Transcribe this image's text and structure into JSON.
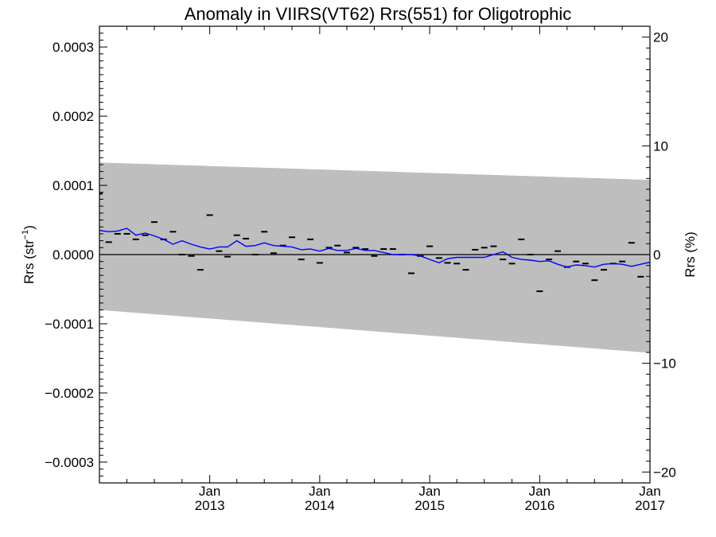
{
  "chart_data": {
    "type": "line",
    "title": "Anomaly in VIIRS(VT62) Rrs(551) for Oligotrophic",
    "ylabel_left": "Rrs (str",
    "ylabel_left_sup": "−1",
    "ylabel_left_close": ")",
    "ylabel_right": "Rrs (%)",
    "xlim": [
      "2012-01-01",
      "2017-01-01"
    ],
    "ylim": [
      -0.00033,
      0.00033
    ],
    "ylim_right": [
      -21.0,
      21.0
    ],
    "y_ticks": [
      {
        "value": 0.0003,
        "label": "0.0003"
      },
      {
        "value": 0.0002,
        "label": "0.0002"
      },
      {
        "value": 0.0001,
        "label": "0.0001"
      },
      {
        "value": 0.0,
        "label": "0.0000"
      },
      {
        "value": -0.0001,
        "label": "−0.0001"
      },
      {
        "value": -0.0002,
        "label": "−0.0002"
      },
      {
        "value": -0.0003,
        "label": "−0.0003"
      }
    ],
    "y_ticks_right": [
      {
        "value": 20,
        "label": "20"
      },
      {
        "value": 10,
        "label": "10"
      },
      {
        "value": 0,
        "label": "0"
      },
      {
        "value": -10,
        "label": "−10"
      },
      {
        "value": -20,
        "label": "−20"
      }
    ],
    "x_ticks": [
      {
        "date": "2013-01-01",
        "month": "Jan",
        "year": "2013"
      },
      {
        "date": "2014-01-01",
        "month": "Jan",
        "year": "2014"
      },
      {
        "date": "2015-01-01",
        "month": "Jan",
        "year": "2015"
      },
      {
        "date": "2016-01-01",
        "month": "Jan",
        "year": "2016"
      },
      {
        "date": "2017-01-01",
        "month": "Jan",
        "year": "2017"
      }
    ],
    "grid": false,
    "zero_line": true,
    "band": {
      "color": "#bebebe",
      "upper": [
        [
          "2012-01-01",
          0.000133
        ],
        [
          "2017-01-01",
          0.000108
        ]
      ],
      "lower": [
        [
          "2012-01-01",
          -8e-05
        ],
        [
          "2017-01-01",
          -0.000142
        ]
      ]
    },
    "series": [
      {
        "style": "dash",
        "color": "#000000",
        "points": [
          [
            "2012-01-01",
            8.8e-05
          ],
          [
            "2012-02-01",
            1.8e-05
          ],
          [
            "2012-03-01",
            3e-05
          ],
          [
            "2012-04-01",
            3e-05
          ],
          [
            "2012-05-01",
            2.2e-05
          ],
          [
            "2012-06-01",
            2.8e-05
          ],
          [
            "2012-07-01",
            4.7e-05
          ],
          [
            "2012-08-01",
            2.2e-05
          ],
          [
            "2012-09-01",
            3.3e-05
          ],
          [
            "2012-10-01",
            0.0
          ],
          [
            "2012-11-01",
            -2e-06
          ],
          [
            "2012-12-01",
            -2.2e-05
          ],
          [
            "2013-01-01",
            5.7e-05
          ],
          [
            "2013-02-01",
            5e-06
          ],
          [
            "2013-03-01",
            -3e-06
          ],
          [
            "2013-04-01",
            2.8e-05
          ],
          [
            "2013-05-01",
            2.3e-05
          ],
          [
            "2013-06-01",
            0.0
          ],
          [
            "2013-07-01",
            3.3e-05
          ],
          [
            "2013-08-01",
            2e-06
          ],
          [
            "2013-09-01",
            1.3e-05
          ],
          [
            "2013-10-01",
            2.5e-05
          ],
          [
            "2013-11-01",
            -7e-06
          ],
          [
            "2013-12-01",
            2.2e-05
          ],
          [
            "2014-01-01",
            -1.2e-05
          ],
          [
            "2014-02-01",
            1e-05
          ],
          [
            "2014-03-01",
            1.3e-05
          ],
          [
            "2014-04-01",
            3e-06
          ],
          [
            "2014-05-01",
            1e-05
          ],
          [
            "2014-06-01",
            8e-06
          ],
          [
            "2014-07-01",
            -2e-06
          ],
          [
            "2014-08-01",
            8e-06
          ],
          [
            "2014-09-01",
            8e-06
          ],
          [
            "2014-10-01",
            0.0
          ],
          [
            "2014-11-01",
            -2.7e-05
          ],
          [
            "2014-12-01",
            -2e-06
          ],
          [
            "2015-01-01",
            1.2e-05
          ],
          [
            "2015-02-01",
            -5e-06
          ],
          [
            "2015-03-01",
            -1.2e-05
          ],
          [
            "2015-04-01",
            -1.3e-05
          ],
          [
            "2015-05-01",
            -2.2e-05
          ],
          [
            "2015-06-01",
            7e-06
          ],
          [
            "2015-07-01",
            1e-05
          ],
          [
            "2015-08-01",
            1.2e-05
          ],
          [
            "2015-09-01",
            -7e-06
          ],
          [
            "2015-10-01",
            -1.3e-05
          ],
          [
            "2015-11-01",
            2.2e-05
          ],
          [
            "2015-12-01",
            0.0
          ],
          [
            "2016-01-01",
            -5.3e-05
          ],
          [
            "2016-02-01",
            -7e-06
          ],
          [
            "2016-03-01",
            5e-06
          ],
          [
            "2016-04-01",
            -1.8e-05
          ],
          [
            "2016-05-01",
            -1e-05
          ],
          [
            "2016-06-01",
            -1.3e-05
          ],
          [
            "2016-07-01",
            -3.7e-05
          ],
          [
            "2016-08-01",
            -2.2e-05
          ],
          [
            "2016-09-01",
            -1.3e-05
          ],
          [
            "2016-10-01",
            -1e-05
          ],
          [
            "2016-11-01",
            1.7e-05
          ],
          [
            "2016-12-01",
            -3.2e-05
          ]
        ]
      },
      {
        "style": "line",
        "color": "#0000ff",
        "points": [
          [
            "2012-01-01",
            3.5e-05
          ],
          [
            "2012-02-01",
            3.3e-05
          ],
          [
            "2012-03-01",
            3.4e-05
          ],
          [
            "2012-04-01",
            3.8e-05
          ],
          [
            "2012-05-01",
            2.8e-05
          ],
          [
            "2012-06-01",
            3.1e-05
          ],
          [
            "2012-07-01",
            2.7e-05
          ],
          [
            "2012-08-01",
            2.2e-05
          ],
          [
            "2012-09-01",
            1.5e-05
          ],
          [
            "2012-10-01",
            2e-05
          ],
          [
            "2012-11-01",
            1.5e-05
          ],
          [
            "2012-12-01",
            1.1e-05
          ],
          [
            "2013-01-01",
            8e-06
          ],
          [
            "2013-02-01",
            1.1e-05
          ],
          [
            "2013-03-01",
            1.1e-05
          ],
          [
            "2013-04-01",
            2e-05
          ],
          [
            "2013-05-01",
            1.2e-05
          ],
          [
            "2013-06-01",
            1.3e-05
          ],
          [
            "2013-07-01",
            1.7e-05
          ],
          [
            "2013-08-01",
            1.3e-05
          ],
          [
            "2013-09-01",
            1.2e-05
          ],
          [
            "2013-10-01",
            1.1e-05
          ],
          [
            "2013-11-01",
            7e-06
          ],
          [
            "2013-12-01",
            8e-06
          ],
          [
            "2014-01-01",
            5e-06
          ],
          [
            "2014-02-01",
            9e-06
          ],
          [
            "2014-03-01",
            6e-06
          ],
          [
            "2014-04-01",
            6e-06
          ],
          [
            "2014-05-01",
            9e-06
          ],
          [
            "2014-06-01",
            6e-06
          ],
          [
            "2014-07-01",
            6e-06
          ],
          [
            "2014-08-01",
            3e-06
          ],
          [
            "2014-09-01",
            0.0
          ],
          [
            "2014-10-01",
            0.0
          ],
          [
            "2014-11-01",
            0.0
          ],
          [
            "2014-12-01",
            -2e-06
          ],
          [
            "2015-01-01",
            -7e-06
          ],
          [
            "2015-02-01",
            -1.2e-05
          ],
          [
            "2015-03-01",
            -6e-06
          ],
          [
            "2015-04-01",
            -4e-06
          ],
          [
            "2015-05-01",
            -4e-06
          ],
          [
            "2015-06-01",
            -4e-06
          ],
          [
            "2015-07-01",
            -4e-06
          ],
          [
            "2015-08-01",
            0.0
          ],
          [
            "2015-09-01",
            4e-06
          ],
          [
            "2015-10-01",
            -4e-06
          ],
          [
            "2015-11-01",
            -7e-06
          ],
          [
            "2015-12-01",
            -8e-06
          ],
          [
            "2016-01-01",
            -1e-05
          ],
          [
            "2016-02-01",
            -9e-06
          ],
          [
            "2016-03-01",
            -1.4e-05
          ],
          [
            "2016-04-01",
            -1.8e-05
          ],
          [
            "2016-05-01",
            -1.5e-05
          ],
          [
            "2016-06-01",
            -1.6e-05
          ],
          [
            "2016-07-01",
            -1.8e-05
          ],
          [
            "2016-08-01",
            -1.4e-05
          ],
          [
            "2016-09-01",
            -1.3e-05
          ],
          [
            "2016-10-01",
            -1.4e-05
          ],
          [
            "2016-11-01",
            -1.7e-05
          ],
          [
            "2016-12-01",
            -1.4e-05
          ],
          [
            "2017-01-01",
            -1.1e-05
          ]
        ]
      }
    ]
  }
}
